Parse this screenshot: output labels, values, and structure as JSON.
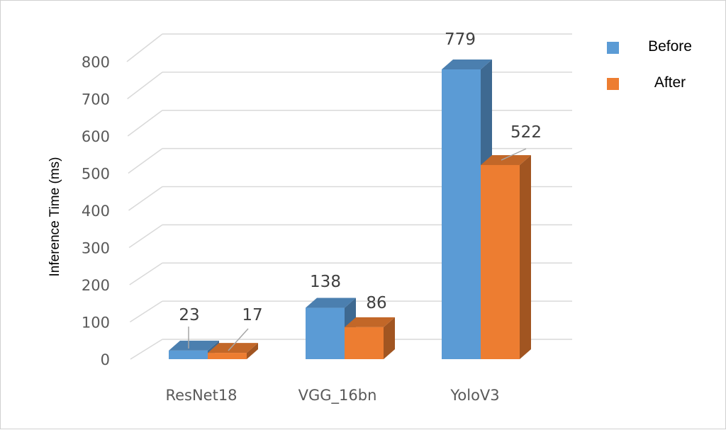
{
  "chart_data": {
    "type": "bar",
    "categories": [
      "ResNet18",
      "VGG_16bn",
      "YoloV3"
    ],
    "series": [
      {
        "name": "Before",
        "color": "#5b9bd5",
        "values": [
          23,
          138,
          779
        ]
      },
      {
        "name": "After",
        "color": "#ed7d31",
        "values": [
          17,
          86,
          522
        ]
      }
    ],
    "ylabel": "Inference Time (ms)",
    "ylim": [
      0,
      800
    ],
    "yticks": [
      0,
      100,
      200,
      300,
      400,
      500,
      600,
      700,
      800
    ],
    "grid": true,
    "style": "3d-clustered-column",
    "legend_position": "top-right"
  }
}
